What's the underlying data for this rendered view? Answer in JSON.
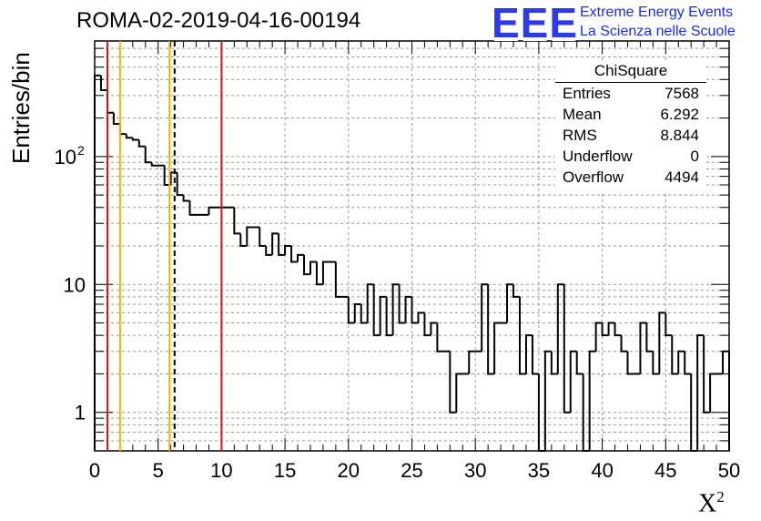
{
  "title": "ROMA-02-2019-04-16-00194",
  "logo": {
    "mark": "EEE",
    "line1": "Extreme Energy Events",
    "line2": "La Scienza nelle Scuole",
    "color": "#1a2cf0"
  },
  "stats": {
    "title": "ChiSquare",
    "rows": [
      {
        "label": "Entries",
        "value": "7568"
      },
      {
        "label": "Mean",
        "value": "6.292"
      },
      {
        "label": "RMS",
        "value": "8.844"
      },
      {
        "label": "Underflow",
        "value": "0"
      },
      {
        "label": "Overflow",
        "value": "4494"
      }
    ]
  },
  "chart_data": {
    "type": "histogram",
    "xlabel_main": "X",
    "xlabel_sup": "2",
    "ylabel": "Entries/bin",
    "xlim": [
      0,
      50
    ],
    "ylim": [
      0.5,
      800
    ],
    "yscale": "log",
    "grid": true,
    "bin_width": 0.5,
    "x_ticks": [
      "0",
      "5",
      "10",
      "15",
      "20",
      "25",
      "30",
      "35",
      "40",
      "45",
      "50"
    ],
    "y_ticks": [
      {
        "value": 1,
        "label": "1"
      },
      {
        "value": 10,
        "label": "10"
      },
      {
        "value": 100,
        "label": "10",
        "sup": "2"
      }
    ],
    "values": [
      430,
      330,
      220,
      180,
      150,
      140,
      135,
      120,
      90,
      85,
      85,
      60,
      75,
      50,
      45,
      35,
      35,
      35,
      40,
      40,
      40,
      40,
      25,
      20,
      28,
      28,
      20,
      17,
      25,
      17,
      20,
      15,
      17,
      12,
      15,
      10,
      15,
      15,
      8,
      8,
      5,
      7,
      5,
      10,
      4,
      8,
      4,
      10,
      5,
      8,
      5,
      6,
      4,
      5,
      3,
      3,
      1,
      2,
      2,
      3,
      3,
      10,
      2,
      5,
      5,
      10,
      8,
      2,
      4,
      2,
      0,
      3,
      2,
      10,
      1,
      3,
      2,
      0,
      3,
      5,
      4,
      5,
      4,
      3,
      2,
      2,
      5,
      3,
      2,
      6,
      4,
      2,
      3,
      2,
      0,
      4,
      1,
      2,
      2,
      3
    ],
    "vertical_lines": [
      {
        "x": 1,
        "color": "#e01010",
        "style": "solid"
      },
      {
        "x": 2,
        "color": "#f2b600",
        "style": "solid"
      },
      {
        "x": 5.9,
        "color": "#f2b600",
        "style": "solid"
      },
      {
        "x": 6.3,
        "color": "#000000",
        "style": "dashed"
      },
      {
        "x": 10,
        "color": "#e01010",
        "style": "solid"
      }
    ]
  }
}
